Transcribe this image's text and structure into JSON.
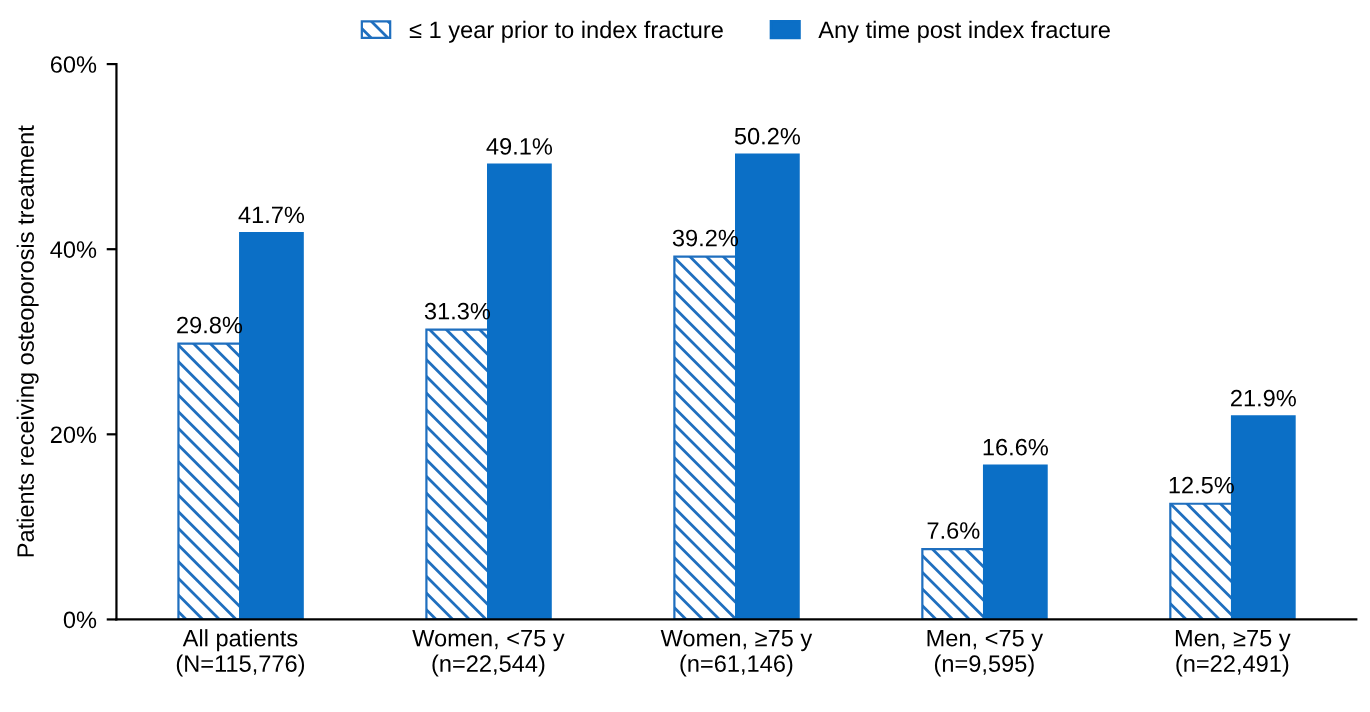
{
  "chart_data": {
    "type": "bar",
    "ylabel": "Patients receiving osteoporosis treatment",
    "categories": [
      "All patients\n(N=115,776)",
      "Women, <75 y\n(n=22,544)",
      "Women, ≥75 y\n(n=61,146)",
      "Men, <75 y\n(n=9,595)",
      "Men, ≥75 y\n(n=22,491)"
    ],
    "series": [
      {
        "name": "≤ 1 year prior to index fracture",
        "color": "#1f6fbf",
        "values": [
          29.8,
          31.3,
          39.2,
          7.6,
          12.5
        ],
        "value_labels": [
          "29.8%",
          "31.3%",
          "39.2%",
          "7.6%",
          "12.5%"
        ]
      },
      {
        "name": "Any time post index fracture",
        "color": "#0b6fc6",
        "values": [
          41.7,
          49.1,
          50.2,
          16.6,
          21.9
        ],
        "value_labels": [
          "41.7%",
          "49.1%",
          "50.2%",
          "16.6%",
          "21.9%"
        ]
      }
    ],
    "ylim": [
      0,
      60
    ],
    "yticks": [
      {
        "value": 0,
        "label": "0%"
      },
      {
        "value": 20,
        "label": "20%"
      },
      {
        "value": 40,
        "label": "40%"
      },
      {
        "value": 60,
        "label": "60%"
      }
    ],
    "grid": false,
    "legend": "top"
  }
}
